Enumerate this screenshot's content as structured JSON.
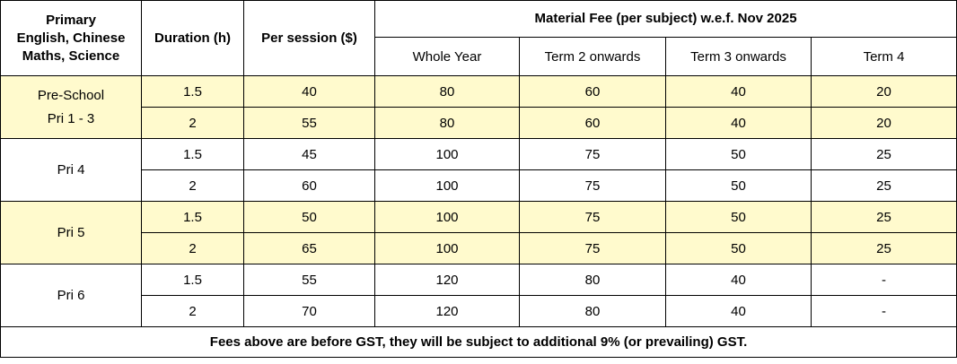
{
  "headers": {
    "col1": [
      "Primary",
      "English, Chinese",
      "Maths, Science"
    ],
    "duration": "Duration (h)",
    "per_session": "Per session ($)",
    "material_fee": "Material Fee (per subject) w.e.f. Nov 2025",
    "sub": [
      "Whole Year",
      "Term 2 onwards",
      "Term 3 onwards",
      "Term 4"
    ]
  },
  "groups": [
    {
      "level": [
        "Pre-School",
        "Pri 1 - 3"
      ],
      "highlight": true,
      "rows": [
        {
          "duration": "1.5",
          "per_session": "40",
          "whole_year": "80",
          "term2": "60",
          "term3": "40",
          "term4": "20"
        },
        {
          "duration": "2",
          "per_session": "55",
          "whole_year": "80",
          "term2": "60",
          "term3": "40",
          "term4": "20"
        }
      ]
    },
    {
      "level": [
        "Pri 4"
      ],
      "highlight": false,
      "rows": [
        {
          "duration": "1.5",
          "per_session": "45",
          "whole_year": "100",
          "term2": "75",
          "term3": "50",
          "term4": "25"
        },
        {
          "duration": "2",
          "per_session": "60",
          "whole_year": "100",
          "term2": "75",
          "term3": "50",
          "term4": "25"
        }
      ]
    },
    {
      "level": [
        "Pri 5"
      ],
      "highlight": true,
      "rows": [
        {
          "duration": "1.5",
          "per_session": "50",
          "whole_year": "100",
          "term2": "75",
          "term3": "50",
          "term4": "25"
        },
        {
          "duration": "2",
          "per_session": "65",
          "whole_year": "100",
          "term2": "75",
          "term3": "50",
          "term4": "25"
        }
      ]
    },
    {
      "level": [
        "Pri 6"
      ],
      "highlight": false,
      "rows": [
        {
          "duration": "1.5",
          "per_session": "55",
          "whole_year": "120",
          "term2": "80",
          "term3": "40",
          "term4": "-"
        },
        {
          "duration": "2",
          "per_session": "70",
          "whole_year": "120",
          "term2": "80",
          "term3": "40",
          "term4": "-"
        }
      ]
    }
  ],
  "footer": "Fees above are before GST, they will be subject to additional 9% (or prevailing) GST.",
  "colors": {
    "highlight": "#fffacd",
    "border": "#000000"
  }
}
